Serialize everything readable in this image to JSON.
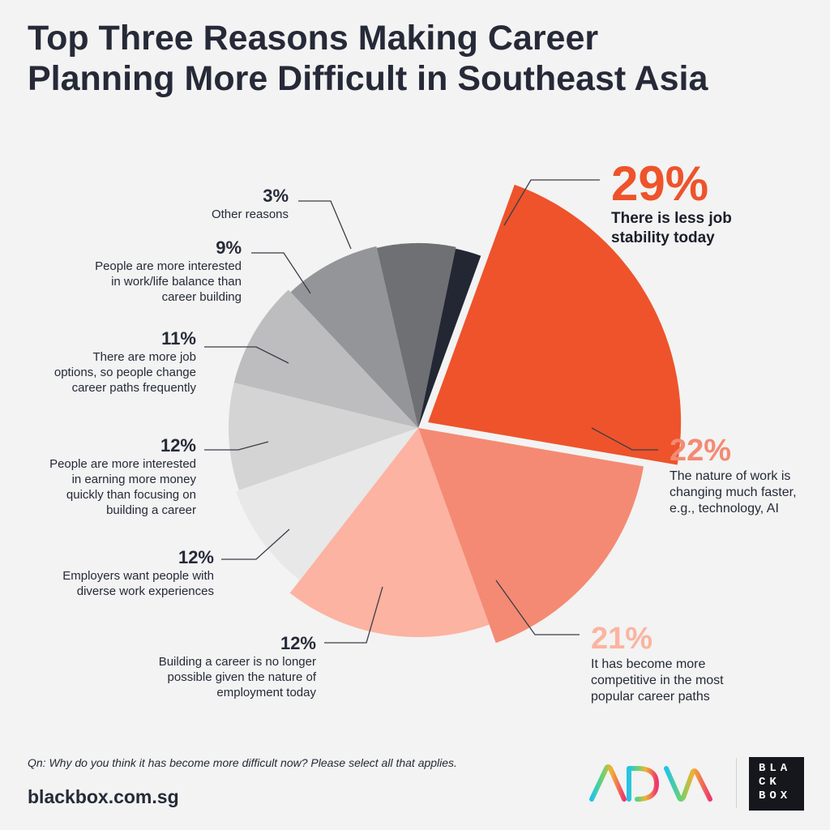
{
  "title_lines": [
    "Top Three Reasons Making Career",
    "Planning More Difficult in Southeast Asia"
  ],
  "question_prefix": "Qn:",
  "question_text": " Why do you think it has become more difficult now? Please select all that applies.",
  "website": "blackbox.com.sg",
  "logo_text_lines": [
    "BLA",
    "CK",
    "BOX"
  ],
  "chart_data": {
    "type": "pie",
    "title": "Top Three Reasons Making Career Planning More Difficult in Southeast Asia",
    "unit": "%",
    "slices": [
      {
        "label": "There is less job stability today",
        "value": 29,
        "value_label": "29%",
        "color": "#ee532b"
      },
      {
        "label": "The nature of work is changing much faster, e.g., technology, AI",
        "value": 22,
        "value_label": "22%",
        "color": "#f48a73"
      },
      {
        "label": "It has become more competitive in the most popular career paths",
        "value": 21,
        "value_label": "21%",
        "color": "#fcb3a1"
      },
      {
        "label": "Building a career is no longer possible given the nature of employment today",
        "value": 12,
        "value_label": "12%",
        "color": "#e8e8e8"
      },
      {
        "label": "Employers want people with diverse work experiences",
        "value": 12,
        "value_label": "12%",
        "color": "#d4d4d5"
      },
      {
        "label": "People are more interested in earning more money quickly than focusing on building a career",
        "value": 12,
        "value_label": "12%",
        "color": "#bdbdbf"
      },
      {
        "label": "There are more job options, so people change career paths frequently",
        "value": 11,
        "value_label": "11%",
        "color": "#949598"
      },
      {
        "label": "People are more interested in work/life balance than career building",
        "value": 9,
        "value_label": "9%",
        "color": "#6f7074"
      },
      {
        "label": "Other reasons",
        "value": 3,
        "value_label": "3%",
        "color": "#232733"
      }
    ]
  },
  "labels": [
    {
      "pct": "29%",
      "lines": [
        "There is less job",
        "stability today"
      ],
      "pct_color": "#ee532b"
    },
    {
      "pct": "22%",
      "lines": [
        "The nature of work is",
        "changing much faster,",
        "e.g., technology, AI"
      ],
      "pct_color": "#f48a73"
    },
    {
      "pct": "21%",
      "lines": [
        "It has become more",
        "competitive in the most",
        "popular career paths"
      ],
      "pct_color": "#fcb3a1"
    },
    {
      "pct": "12%",
      "lines": [
        "Building a career is no longer",
        "possible given the nature of",
        "employment today"
      ],
      "pct_color": "#262a38"
    },
    {
      "pct": "12%",
      "lines": [
        "Employers want people with",
        "diverse work experiences"
      ],
      "pct_color": "#262a38"
    },
    {
      "pct": "12%",
      "lines": [
        "People are more interested",
        "in earning more money",
        "quickly than focusing on",
        "building a career"
      ],
      "pct_color": "#262a38"
    },
    {
      "pct": "11%",
      "lines": [
        "There are more job",
        "options, so people change",
        "career paths frequently"
      ],
      "pct_color": "#262a38"
    },
    {
      "pct": "9%",
      "lines": [
        "People are more interested",
        "in work/life balance than",
        "career building"
      ],
      "pct_color": "#262a38"
    },
    {
      "pct": "3%",
      "lines": [
        "Other reasons"
      ],
      "pct_color": "#262a38"
    }
  ]
}
